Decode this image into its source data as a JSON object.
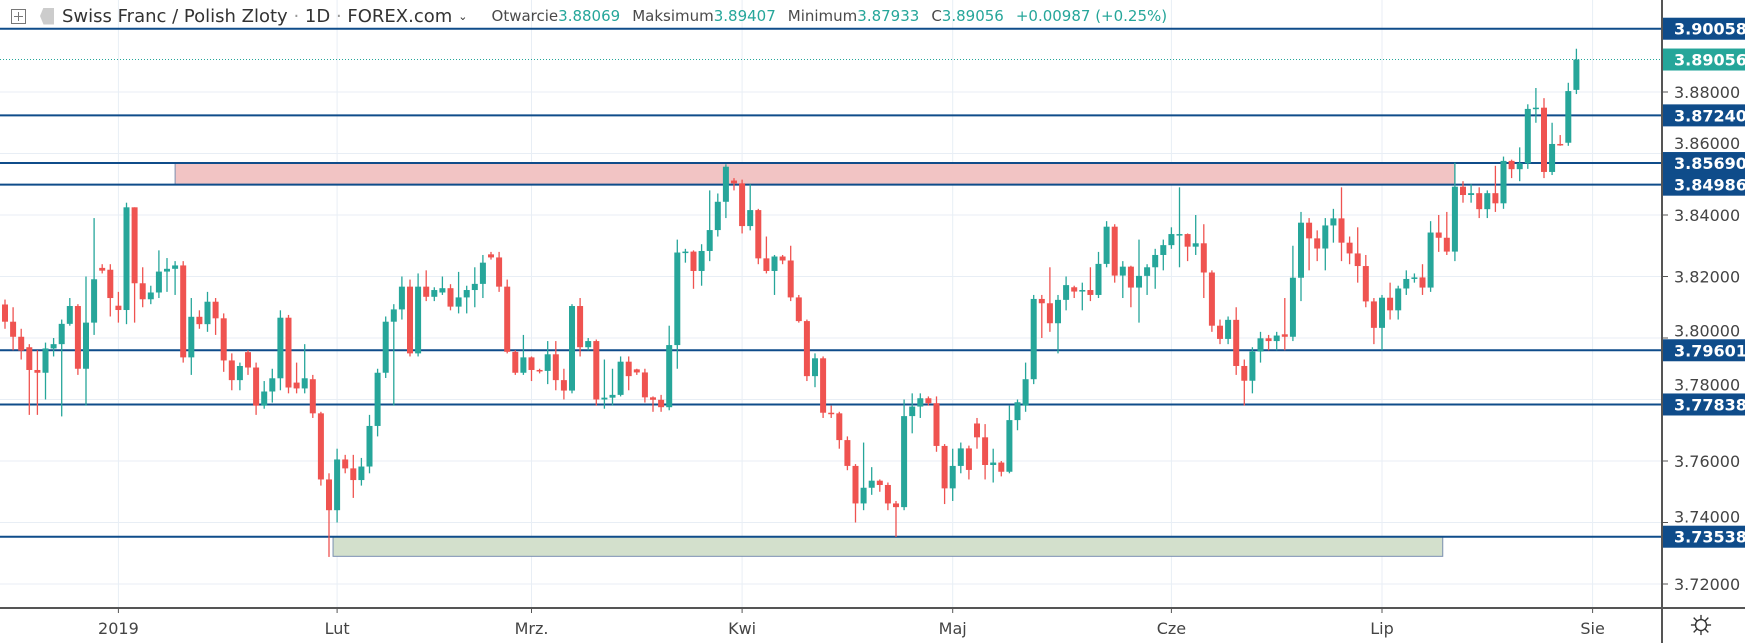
{
  "header": {
    "symbol_title": "Swiss Franc / Polish Zloty",
    "interval": "1D",
    "exchange": "FOREX.com",
    "open_label": "Otwarcie",
    "open_value": "3.88069",
    "high_label": "Maksimum",
    "high_value": "3.89407",
    "low_label": "Minimum",
    "low_value": "3.87933",
    "close_label": "C",
    "close_value": "3.89056",
    "change": "+0.00987 (+0.25%)"
  },
  "icons": [
    "plus-box-icon",
    "flag-icon",
    "chevron-down-icon",
    "settings-gear-icon"
  ],
  "colors": {
    "up": "#26a69a",
    "down": "#ef5350",
    "level_line": "#0f4c8a",
    "resistance_zone": "#f2c4c4",
    "support_zone": "#d3e0cc",
    "grid": "#e8eef5"
  },
  "chart_data": {
    "type": "candlestick",
    "title": "Swiss Franc / Polish Zloty · 1D · FOREX.com",
    "ylim": [
      3.71,
      3.9075
    ],
    "y_ticks": [
      "3.72000",
      "3.74000",
      "3.76000",
      "3.78000",
      "3.80000",
      "3.82000",
      "3.84000",
      "3.86000",
      "3.88000"
    ],
    "x_ticks": [
      {
        "label": "2019",
        "index": 14
      },
      {
        "label": "Lut",
        "index": 41
      },
      {
        "label": "Mrz.",
        "index": 65
      },
      {
        "label": "Kwi",
        "index": 91
      },
      {
        "label": "Maj",
        "index": 117
      },
      {
        "label": "Cze",
        "index": 144
      },
      {
        "label": "Lip",
        "index": 170
      },
      {
        "label": "Sie",
        "index": 196
      }
    ],
    "level_lines": [
      {
        "label": "3.90058",
        "value": 3.90058
      },
      {
        "label": "3.87240",
        "value": 3.8724
      },
      {
        "label": "3.85690",
        "value": 3.8569
      },
      {
        "label": "3.84986",
        "value": 3.84986
      },
      {
        "label": "3.79601",
        "value": 3.79601
      },
      {
        "label": "3.77838",
        "value": 3.77838
      },
      {
        "label": "3.73538",
        "value": 3.73538
      }
    ],
    "last_price": {
      "label": "3.89056",
      "value": 3.89056
    },
    "zones": [
      {
        "name": "resistance-zone",
        "from_index": 21,
        "to_index": 179,
        "low": 3.84986,
        "high": 3.8569
      },
      {
        "name": "support-zone",
        "from_index": 40.5,
        "to_index": 177.5,
        "low": 3.729,
        "high": 3.73538
      }
    ],
    "candles_ohlc": [
      [
        3.8109,
        3.8125,
        3.803,
        3.8053
      ],
      [
        3.8053,
        3.81,
        3.796,
        3.8004
      ],
      [
        3.8004,
        3.803,
        3.793,
        3.7959
      ],
      [
        3.797,
        3.798,
        3.775,
        3.7896
      ],
      [
        3.7896,
        3.796,
        3.775,
        3.7887
      ],
      [
        3.7887,
        3.7985,
        3.78,
        3.7966
      ],
      [
        3.7966,
        3.8,
        3.794,
        3.798
      ],
      [
        3.798,
        3.806,
        3.7745,
        3.8046
      ],
      [
        3.8046,
        3.813,
        3.804,
        3.8104
      ],
      [
        3.8104,
        3.811,
        3.788,
        3.79
      ],
      [
        3.79,
        3.82,
        3.778,
        3.805
      ],
      [
        3.805,
        3.839,
        3.801,
        3.8191
      ],
      [
        3.8228,
        3.824,
        3.821,
        3.8219
      ],
      [
        3.8222,
        3.824,
        3.807,
        3.813
      ],
      [
        3.8105,
        3.815,
        3.805,
        3.8091
      ],
      [
        3.8091,
        3.844,
        3.8045,
        3.8425
      ],
      [
        3.8425,
        3.8425,
        3.805,
        3.8178
      ],
      [
        3.8178,
        3.823,
        3.81,
        3.8126
      ],
      [
        3.8126,
        3.817,
        3.811,
        3.8148
      ],
      [
        3.8148,
        3.8285,
        3.813,
        3.8216
      ],
      [
        3.8216,
        3.826,
        3.815,
        3.8225
      ],
      [
        3.8225,
        3.825,
        3.814,
        3.8236
      ],
      [
        3.8236,
        3.825,
        3.792,
        3.7937
      ],
      [
        3.7937,
        3.813,
        3.788,
        3.8069
      ],
      [
        3.8069,
        3.809,
        3.803,
        3.8045
      ],
      [
        3.8045,
        3.815,
        3.802,
        3.8118
      ],
      [
        3.8118,
        3.813,
        3.801,
        3.8064
      ],
      [
        3.8064,
        3.808,
        3.789,
        3.7927
      ],
      [
        3.7927,
        3.795,
        3.783,
        3.7863
      ],
      [
        3.7863,
        3.792,
        3.783,
        3.7909
      ],
      [
        3.7954,
        3.796,
        3.788,
        3.7904
      ],
      [
        3.7904,
        3.792,
        3.775,
        3.778
      ],
      [
        3.778,
        3.786,
        3.777,
        3.7826
      ],
      [
        3.7826,
        3.79,
        3.779,
        3.7869
      ],
      [
        3.7869,
        3.809,
        3.783,
        3.8066
      ],
      [
        3.8066,
        3.8075,
        3.782,
        3.7839
      ],
      [
        3.7855,
        3.792,
        3.782,
        3.7836
      ],
      [
        3.7836,
        3.798,
        3.782,
        3.7869
      ],
      [
        3.7866,
        3.788,
        3.774,
        3.7755
      ],
      [
        3.7755,
        3.776,
        3.752,
        3.754
      ],
      [
        3.754,
        3.756,
        3.7288,
        3.744
      ],
      [
        3.744,
        3.764,
        3.74,
        3.7605
      ],
      [
        3.7605,
        3.762,
        3.756,
        3.7576
      ],
      [
        3.7576,
        3.762,
        3.748,
        3.7538
      ],
      [
        3.7538,
        3.761,
        3.752,
        3.7582
      ],
      [
        3.7582,
        3.775,
        3.756,
        3.7714
      ],
      [
        3.7714,
        3.79,
        3.768,
        3.7887
      ],
      [
        3.7887,
        3.807,
        3.787,
        3.8053
      ],
      [
        3.8053,
        3.811,
        3.778,
        3.8093
      ],
      [
        3.8093,
        3.82,
        3.806,
        3.8167
      ],
      [
        3.8167,
        3.819,
        3.794,
        3.795
      ],
      [
        3.795,
        3.821,
        3.794,
        3.8167
      ],
      [
        3.8167,
        3.822,
        3.812,
        3.8134
      ],
      [
        3.8134,
        3.8165,
        3.812,
        3.8156
      ],
      [
        3.8148,
        3.82,
        3.814,
        3.8162
      ],
      [
        3.8162,
        3.8175,
        3.809,
        3.8102
      ],
      [
        3.8102,
        3.8215,
        3.808,
        3.8132
      ],
      [
        3.8132,
        3.817,
        3.808,
        3.8156
      ],
      [
        3.8156,
        3.823,
        3.81,
        3.8176
      ],
      [
        3.8176,
        3.827,
        3.813,
        3.8245
      ],
      [
        3.8272,
        3.828,
        3.8255,
        3.8262
      ],
      [
        3.8262,
        3.828,
        3.815,
        3.8167
      ],
      [
        3.8167,
        3.819,
        3.795,
        3.7955
      ],
      [
        3.7955,
        3.796,
        3.788,
        3.7887
      ],
      [
        3.7887,
        3.801,
        3.788,
        3.7937
      ],
      [
        3.7937,
        3.794,
        3.786,
        3.7896
      ],
      [
        3.7896,
        3.79,
        3.7885,
        3.7893
      ],
      [
        3.7893,
        3.799,
        3.785,
        3.7947
      ],
      [
        3.7947,
        3.799,
        3.783,
        3.7863
      ],
      [
        3.7863,
        3.79,
        3.78,
        3.7829
      ],
      [
        3.7829,
        3.811,
        3.782,
        3.8104
      ],
      [
        3.8104,
        3.813,
        3.794,
        3.797
      ],
      [
        3.797,
        3.8,
        3.796,
        3.799
      ],
      [
        3.799,
        3.7995,
        3.778,
        3.78
      ],
      [
        3.78,
        3.793,
        3.777,
        3.7806
      ],
      [
        3.7806,
        3.79,
        3.778,
        3.7815
      ],
      [
        3.7815,
        3.794,
        3.781,
        3.7923
      ],
      [
        3.7923,
        3.794,
        3.783,
        3.7876
      ],
      [
        3.7898,
        3.79,
        3.788,
        3.7888
      ],
      [
        3.7888,
        3.79,
        3.779,
        3.7807
      ],
      [
        3.7807,
        3.781,
        3.776,
        3.7799
      ],
      [
        3.7799,
        3.7815,
        3.776,
        3.7775
      ],
      [
        3.7775,
        3.804,
        3.7765,
        3.7977
      ],
      [
        3.7977,
        3.832,
        3.79,
        3.8278
      ],
      [
        3.8278,
        3.829,
        3.8245,
        3.8281
      ],
      [
        3.8281,
        3.8285,
        3.816,
        3.8218
      ],
      [
        3.8218,
        3.8305,
        3.817,
        3.8283
      ],
      [
        3.8283,
        3.848,
        3.825,
        3.8351
      ],
      [
        3.8351,
        3.847,
        3.833,
        3.8443
      ],
      [
        3.8443,
        3.8565,
        3.839,
        3.8557
      ],
      [
        3.8512,
        3.852,
        3.848,
        3.8503
      ],
      [
        3.8503,
        3.8515,
        3.834,
        3.8364
      ],
      [
        3.8364,
        3.85,
        3.835,
        3.8416
      ],
      [
        3.8416,
        3.842,
        3.824,
        3.8259
      ],
      [
        3.8259,
        3.833,
        3.821,
        3.8218
      ],
      [
        3.8218,
        3.827,
        3.814,
        3.8265
      ],
      [
        3.8265,
        3.827,
        3.824,
        3.8252
      ],
      [
        3.8252,
        3.83,
        3.812,
        3.8132
      ],
      [
        3.8132,
        3.814,
        3.805,
        3.8055
      ],
      [
        3.8055,
        3.806,
        3.786,
        3.7876
      ],
      [
        3.7876,
        3.795,
        3.784,
        3.7934
      ],
      [
        3.7934,
        3.794,
        3.774,
        3.7757
      ],
      [
        3.7757,
        3.778,
        3.774,
        3.7755
      ],
      [
        3.7755,
        3.776,
        3.764,
        3.7668
      ],
      [
        3.7668,
        3.768,
        3.757,
        3.7584
      ],
      [
        3.7584,
        3.759,
        3.74,
        3.7462
      ],
      [
        3.7462,
        3.766,
        3.744,
        3.7513
      ],
      [
        3.7513,
        3.758,
        3.749,
        3.7536
      ],
      [
        3.7536,
        3.754,
        3.75,
        3.7522
      ],
      [
        3.7522,
        3.753,
        3.744,
        3.7462
      ],
      [
        3.7462,
        3.747,
        3.7353,
        3.745
      ],
      [
        3.745,
        3.78,
        3.744,
        3.7746
      ],
      [
        3.7746,
        3.782,
        3.769,
        3.7777
      ],
      [
        3.7777,
        3.782,
        3.774,
        3.7804
      ],
      [
        3.7804,
        3.781,
        3.778,
        3.7788
      ],
      [
        3.7788,
        3.781,
        3.763,
        3.7649
      ],
      [
        3.7649,
        3.7655,
        3.746,
        3.7511
      ],
      [
        3.7511,
        3.764,
        3.747,
        3.7584
      ],
      [
        3.7584,
        3.766,
        3.756,
        3.7641
      ],
      [
        3.7641,
        3.765,
        3.754,
        3.7571
      ],
      [
        3.7722,
        3.774,
        3.764,
        3.7677
      ],
      [
        3.7677,
        3.772,
        3.754,
        3.7587
      ],
      [
        3.7587,
        3.764,
        3.753,
        3.7595
      ],
      [
        3.7595,
        3.76,
        3.755,
        3.7565
      ],
      [
        3.7565,
        3.778,
        3.756,
        3.7733
      ],
      [
        3.7733,
        3.78,
        3.77,
        3.7791
      ],
      [
        3.778,
        3.792,
        3.776,
        3.7866
      ],
      [
        3.7866,
        3.814,
        3.785,
        3.8127
      ],
      [
        3.8127,
        3.814,
        3.8,
        3.8113
      ],
      [
        3.8113,
        3.823,
        3.802,
        3.8048
      ],
      [
        3.8048,
        3.814,
        3.795,
        3.8124
      ],
      [
        3.8124,
        3.82,
        3.809,
        3.8172
      ],
      [
        3.8165,
        3.817,
        3.813,
        3.8151
      ],
      [
        3.8151,
        3.818,
        3.809,
        3.8156
      ],
      [
        3.8156,
        3.823,
        3.812,
        3.814
      ],
      [
        3.814,
        3.828,
        3.813,
        3.8241
      ],
      [
        3.8241,
        3.838,
        3.823,
        3.8362
      ],
      [
        3.8362,
        3.837,
        3.818,
        3.8203
      ],
      [
        3.8203,
        3.825,
        3.813,
        3.8232
      ],
      [
        3.8232,
        3.8235,
        3.81,
        3.8164
      ],
      [
        3.8164,
        3.832,
        3.805,
        3.8202
      ],
      [
        3.8202,
        3.824,
        3.814,
        3.823
      ],
      [
        3.823,
        3.829,
        3.816,
        3.827
      ],
      [
        3.827,
        3.832,
        3.822,
        3.8302
      ],
      [
        3.8302,
        3.836,
        3.829,
        3.8338
      ],
      [
        3.8338,
        3.849,
        3.823,
        3.8338
      ],
      [
        3.8338,
        3.834,
        3.825,
        3.8297
      ],
      [
        3.8297,
        3.84,
        3.827,
        3.8308
      ],
      [
        3.8308,
        3.837,
        3.813,
        3.8213
      ],
      [
        3.8213,
        3.822,
        3.802,
        3.804
      ],
      [
        3.804,
        3.806,
        3.798,
        3.7997
      ],
      [
        3.7997,
        3.807,
        3.798,
        3.8059
      ],
      [
        3.8059,
        3.81,
        3.788,
        3.7909
      ],
      [
        3.7909,
        3.793,
        3.778,
        3.7861
      ],
      [
        3.7861,
        3.797,
        3.782,
        3.7956
      ],
      [
        3.7956,
        3.802,
        3.792,
        3.7999
      ],
      [
        3.7999,
        3.801,
        3.796,
        3.799
      ],
      [
        3.799,
        3.802,
        3.796,
        3.8008
      ],
      [
        3.8012,
        3.813,
        3.796,
        3.8004
      ],
      [
        3.8004,
        3.83,
        3.799,
        3.8196
      ],
      [
        3.8196,
        3.841,
        3.812,
        3.8375
      ],
      [
        3.8375,
        3.839,
        3.822,
        3.8324
      ],
      [
        3.8324,
        3.835,
        3.825,
        3.8291
      ],
      [
        3.8291,
        3.839,
        3.822,
        3.8366
      ],
      [
        3.8366,
        3.842,
        3.831,
        3.8389
      ],
      [
        3.8389,
        3.849,
        3.825,
        3.831
      ],
      [
        3.831,
        3.833,
        3.824,
        3.8275
      ],
      [
        3.8275,
        3.836,
        3.818,
        3.8234
      ],
      [
        3.8234,
        3.827,
        3.81,
        3.8119
      ],
      [
        3.8119,
        3.813,
        3.798,
        3.8033
      ],
      [
        3.8033,
        3.814,
        3.796,
        3.8131
      ],
      [
        3.8131,
        3.818,
        3.806,
        3.809
      ],
      [
        3.809,
        3.817,
        3.806,
        3.8161
      ],
      [
        3.8161,
        3.822,
        3.814,
        3.8192
      ],
      [
        3.8192,
        3.821,
        3.818,
        3.8197
      ],
      [
        3.8197,
        3.824,
        3.814,
        3.8164
      ],
      [
        3.8164,
        3.838,
        3.815,
        3.8343
      ],
      [
        3.8343,
        3.84,
        3.828,
        3.8326
      ],
      [
        3.8326,
        3.841,
        3.827,
        3.8281
      ],
      [
        3.8281,
        3.857,
        3.825,
        3.8492
      ],
      [
        3.8492,
        3.851,
        3.844,
        3.8465
      ],
      [
        3.8465,
        3.85,
        3.844,
        3.8471
      ],
      [
        3.8471,
        3.849,
        3.839,
        3.8419
      ],
      [
        3.8419,
        3.848,
        3.839,
        3.8471
      ],
      [
        3.8471,
        3.856,
        3.841,
        3.8438
      ],
      [
        3.8438,
        3.859,
        3.842,
        3.8576
      ],
      [
        3.8576,
        3.858,
        3.852,
        3.8549
      ],
      [
        3.8549,
        3.862,
        3.851,
        3.8568
      ],
      [
        3.8568,
        3.876,
        3.855,
        3.8745
      ],
      [
        3.8745,
        3.8813,
        3.87,
        3.8749
      ],
      [
        3.8749,
        3.878,
        3.852,
        3.854
      ],
      [
        3.854,
        3.87,
        3.853,
        3.8631
      ],
      [
        3.8631,
        3.866,
        3.8625,
        3.8627
      ],
      [
        3.8635,
        3.883,
        3.8625,
        3.8803
      ],
      [
        3.88069,
        3.89407,
        3.87933,
        3.89056
      ]
    ]
  }
}
